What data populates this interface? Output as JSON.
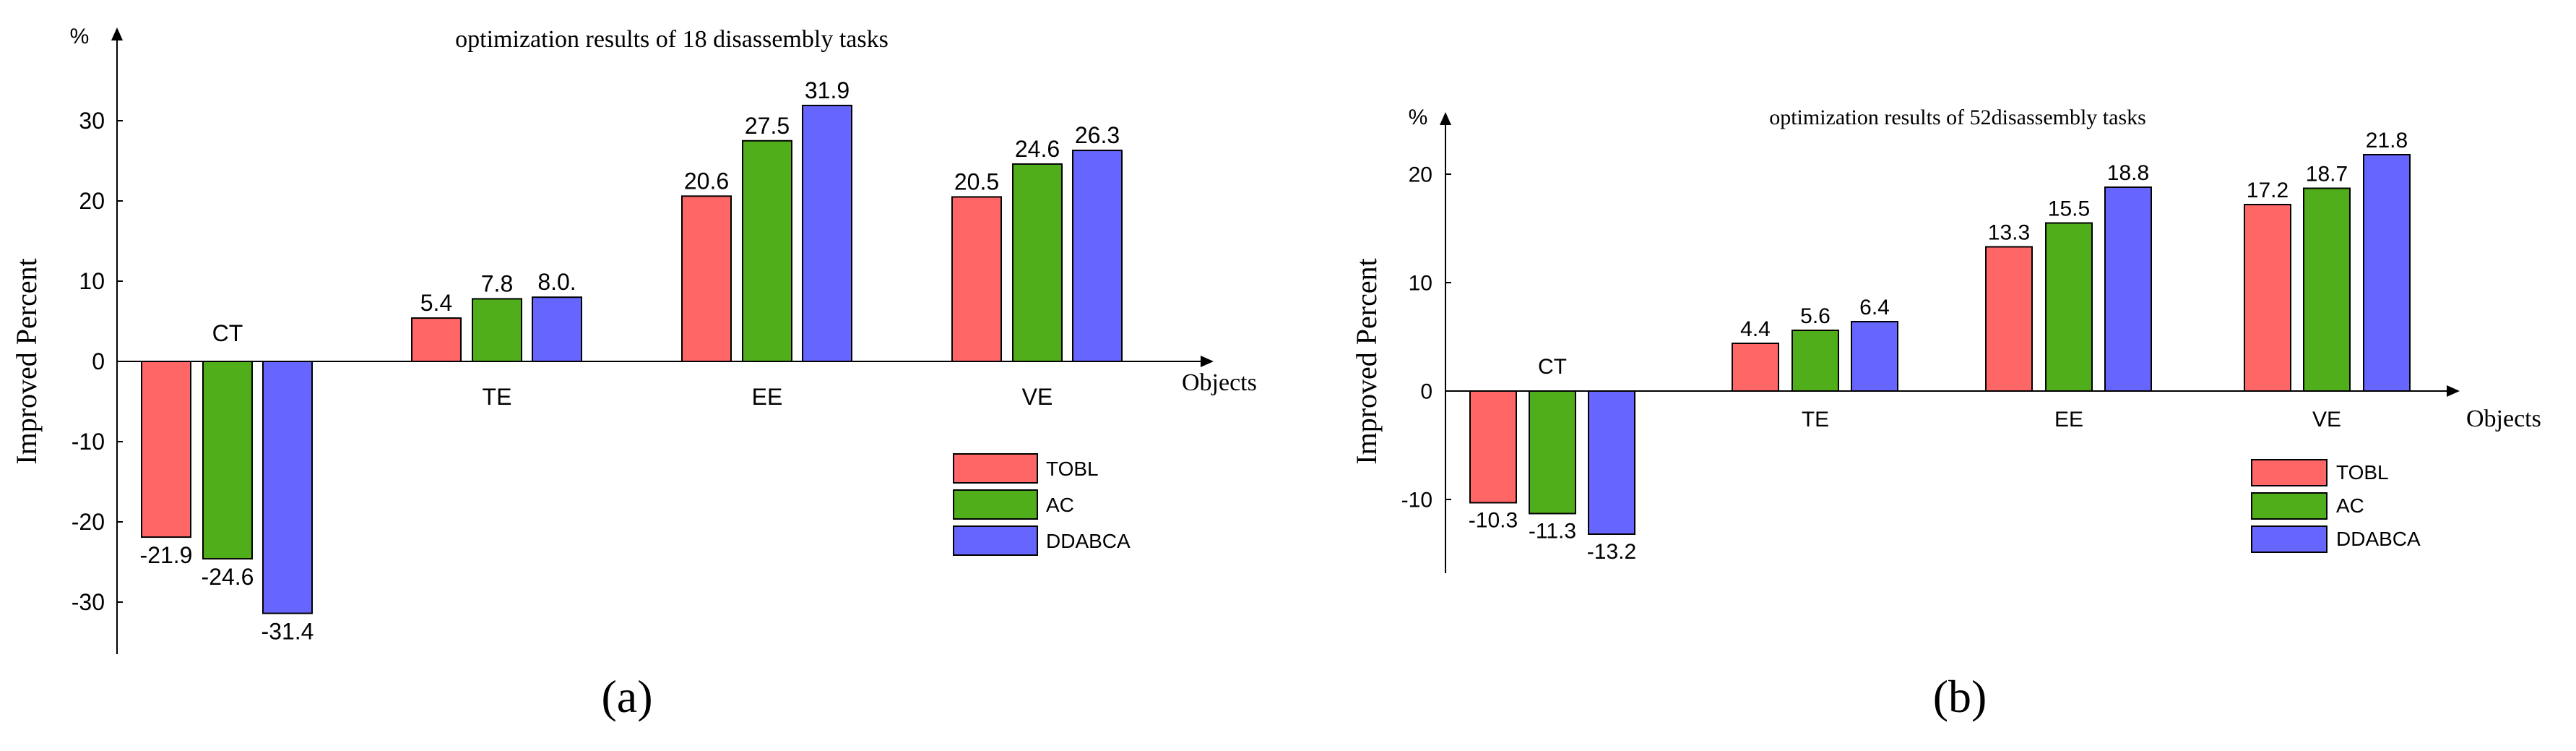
{
  "colors": {
    "TOBL": "#ff6666",
    "AC": "#4fae1a",
    "DDABCA": "#6666ff",
    "axis": "#000000"
  },
  "chart_data": [
    {
      "panel_label": "(a)",
      "type": "bar",
      "title": "optimization results of 18 disassembly tasks",
      "ylabel": "Improved Percent",
      "yunit": "%",
      "xlabel": "Objects",
      "categories": [
        "CT",
        "TE",
        "EE",
        "VE"
      ],
      "value_labels": [
        [
          "-21.9",
          "-24.6",
          "-31.4"
        ],
        [
          "5.4",
          "7.8",
          "8.0."
        ],
        [
          "20.6",
          "27.5",
          "31.9"
        ],
        [
          "20.5",
          "24.6",
          "26.3"
        ]
      ],
      "yticks": [
        30,
        20,
        10,
        0,
        -10,
        -20,
        -30
      ],
      "ylim": [
        -36,
        43
      ],
      "legend_position": "lower-right",
      "series": [
        {
          "name": "TOBL",
          "values": [
            -21.9,
            5.4,
            20.6,
            20.5
          ]
        },
        {
          "name": "AC",
          "values": [
            -24.6,
            7.8,
            27.5,
            24.6
          ]
        },
        {
          "name": "DDABCA",
          "values": [
            -31.4,
            8.0,
            31.9,
            26.3
          ]
        }
      ]
    },
    {
      "panel_label": "(b)",
      "type": "bar",
      "title": "optimization results of 52disassembly tasks",
      "ylabel": "Improved Percent",
      "yunit": "%",
      "xlabel": "Objects",
      "categories": [
        "CT",
        "TE",
        "EE",
        "VE"
      ],
      "value_labels": [
        [
          "-10.3",
          "-11.3",
          "-13.2"
        ],
        [
          "4.4",
          "5.6",
          "6.4"
        ],
        [
          "13.3",
          "15.5",
          "18.8"
        ],
        [
          "17.2",
          "18.7",
          "21.8"
        ]
      ],
      "yticks": [
        20,
        10,
        0,
        -10
      ],
      "ylim": [
        -16,
        26
      ],
      "legend_position": "lower-right",
      "series": [
        {
          "name": "TOBL",
          "values": [
            -10.3,
            4.4,
            13.3,
            17.2
          ]
        },
        {
          "name": "AC",
          "values": [
            -11.3,
            5.6,
            15.5,
            18.7
          ]
        },
        {
          "name": "DDABCA",
          "values": [
            -13.2,
            6.4,
            18.8,
            21.8
          ]
        }
      ]
    }
  ]
}
